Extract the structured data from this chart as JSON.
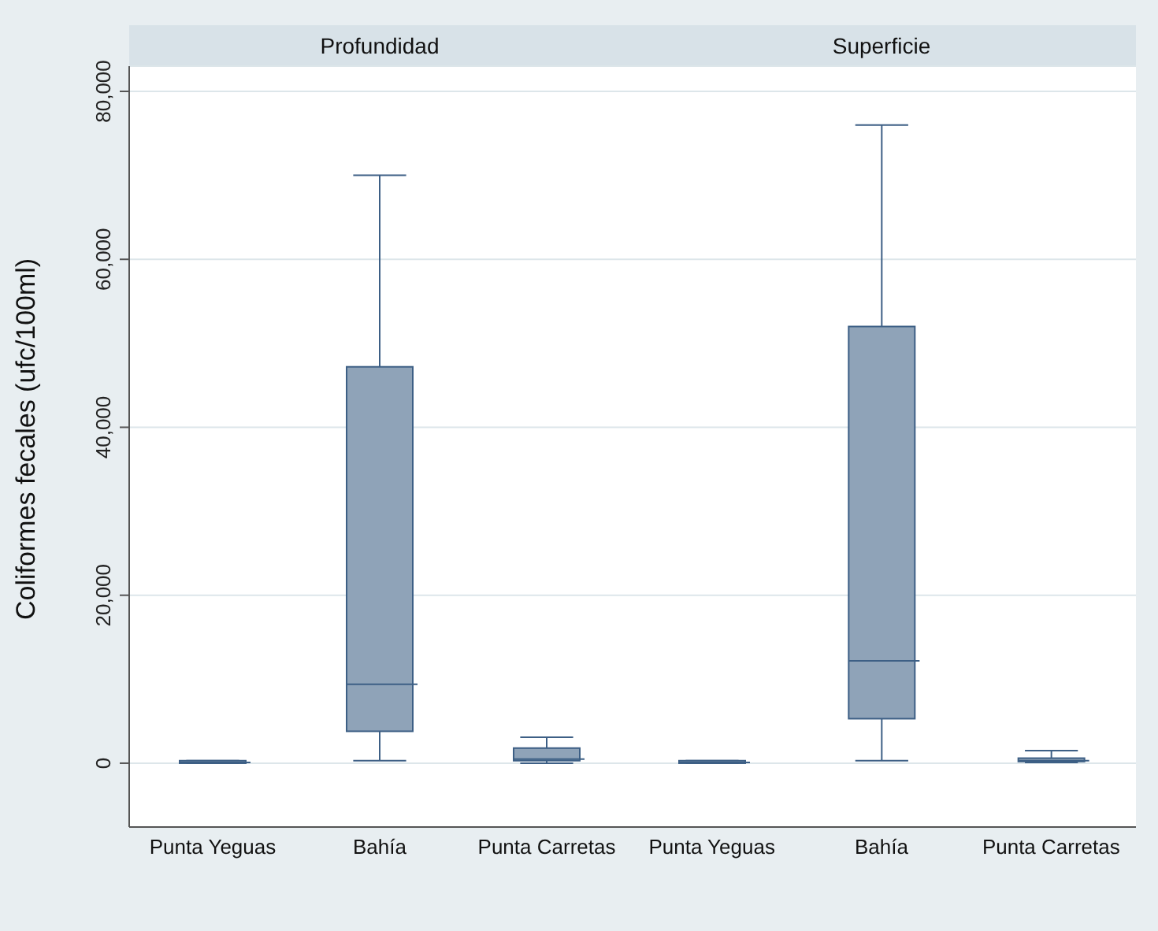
{
  "chart_data": [
    {
      "type": "box",
      "title": "Profundidad",
      "ylabel": "Coliformes fecales (ufc/100ml)",
      "categories": [
        "Punta Yeguas",
        "Bahía",
        "Punta Carretas"
      ],
      "color": "#8fa3b8",
      "ylim": [
        -7600,
        83000
      ],
      "yticks": [
        {
          "value": 0,
          "label": "0"
        },
        {
          "value": 20000,
          "label": "20,000"
        },
        {
          "value": 40000,
          "label": "40,000"
        },
        {
          "value": 60000,
          "label": "60,000"
        },
        {
          "value": 80000,
          "label": "80,000"
        }
      ],
      "grid": "y",
      "boxes": [
        {
          "low": 0,
          "q1": 0,
          "median": 100,
          "q3": 300,
          "high": 300
        },
        {
          "low": 300,
          "q1": 3800,
          "median": 9400,
          "q3": 47200,
          "high": 70000
        },
        {
          "low": 0,
          "q1": 300,
          "median": 500,
          "q3": 1800,
          "high": 3100
        }
      ]
    },
    {
      "type": "box",
      "title": "Superficie",
      "categories": [
        "Punta Yeguas",
        "Bahía",
        "Punta Carretas"
      ],
      "color": "#8fa3b8",
      "ylim": [
        -7600,
        83000
      ],
      "yticks": [
        {
          "value": 0,
          "label": null
        },
        {
          "value": 20000,
          "label": null
        },
        {
          "value": 40000,
          "label": null
        },
        {
          "value": 60000,
          "label": null
        },
        {
          "value": 80000,
          "label": null
        }
      ],
      "grid": "y",
      "tick_labels": "x",
      "boxes": [
        {
          "low": 0,
          "q1": 0,
          "median": 100,
          "q3": 300,
          "high": 300
        },
        {
          "low": 300,
          "q1": 5300,
          "median": 12200,
          "q3": 52000,
          "high": 76000
        },
        {
          "low": 100,
          "q1": 200,
          "median": 300,
          "q3": 600,
          "high": 1500
        }
      ]
    }
  ]
}
